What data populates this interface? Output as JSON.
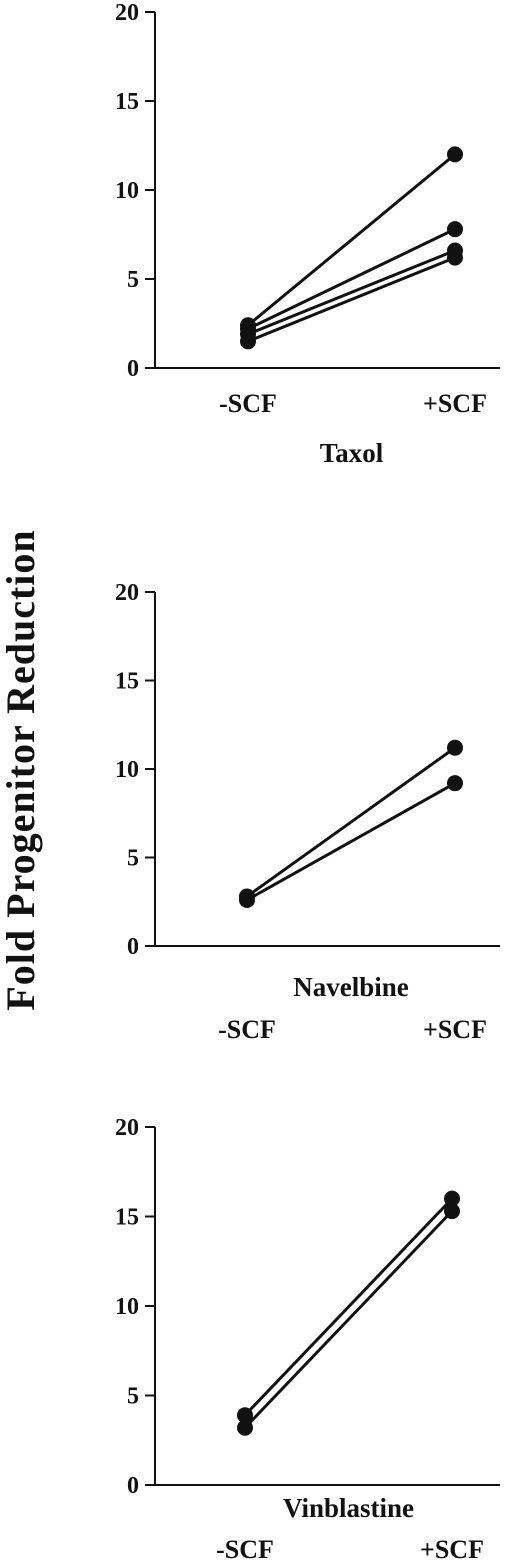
{
  "ylabel": "Fold Progenitor Reduction",
  "chart_data": [
    {
      "type": "line",
      "title": "Taxol",
      "categories": [
        "-SCF",
        "+SCF"
      ],
      "ylim": [
        0,
        20
      ],
      "yticks": [
        0,
        5,
        10,
        15,
        20
      ],
      "series": [
        {
          "values": [
            2.4,
            12.0
          ]
        },
        {
          "values": [
            2.2,
            7.8
          ]
        },
        {
          "values": [
            1.9,
            6.6
          ]
        },
        {
          "values": [
            1.5,
            6.2
          ]
        }
      ]
    },
    {
      "type": "line",
      "title": "Navelbine",
      "categories": [
        "-SCF",
        "+SCF"
      ],
      "ylim": [
        0,
        20
      ],
      "yticks": [
        0,
        5,
        10,
        15,
        20
      ],
      "series": [
        {
          "values": [
            2.8,
            11.2
          ]
        },
        {
          "values": [
            2.6,
            9.2
          ]
        }
      ]
    },
    {
      "type": "line",
      "title": "Vinblastine",
      "categories": [
        "-SCF",
        "+SCF"
      ],
      "ylim": [
        0,
        20
      ],
      "yticks": [
        0,
        5,
        10,
        15,
        20
      ],
      "series": [
        {
          "values": [
            3.9,
            16.0
          ]
        },
        {
          "values": [
            3.2,
            15.3
          ]
        }
      ]
    }
  ]
}
